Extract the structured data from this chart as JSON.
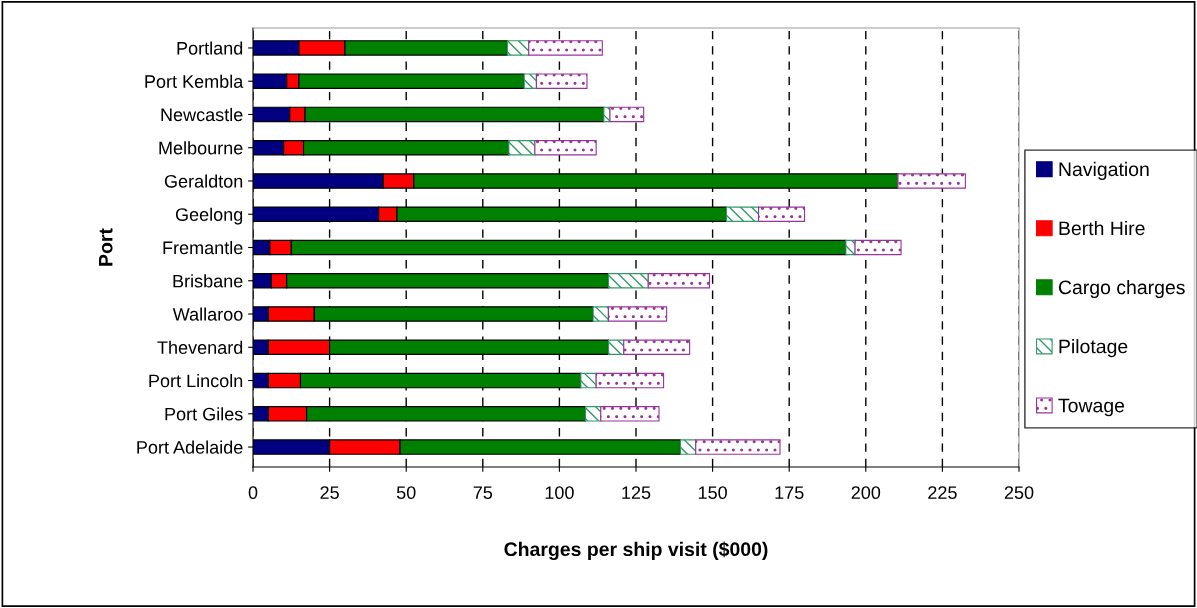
{
  "chart_data": {
    "type": "bar",
    "orientation": "horizontal",
    "stacked": true,
    "xlabel": "Charges per ship visit ($000)",
    "ylabel": "Port",
    "categories": [
      "Portland",
      "Port Kembla",
      "Newcastle",
      "Melbourne",
      "Geraldton",
      "Geelong",
      "Fremantle",
      "Brisbane",
      "Wallaroo",
      "Thevenard",
      "Port Lincoln",
      "Port Giles",
      "Port Adelaide"
    ],
    "series": [
      {
        "name": "Navigation",
        "color": "#000080",
        "values": [
          15,
          11,
          12,
          10,
          42.5,
          41,
          5.5,
          6,
          5,
          5,
          5,
          5,
          25
        ]
      },
      {
        "name": "Berth Hire",
        "color": "#ff0000",
        "values": [
          15,
          4,
          5,
          6.5,
          10,
          6,
          7,
          5,
          15,
          20,
          10.5,
          12.5,
          23
        ]
      },
      {
        "name": "Cargo charges",
        "color": "#008000",
        "values": [
          53,
          73.5,
          97.5,
          67,
          158,
          107.5,
          181,
          105,
          91,
          91,
          91.5,
          91,
          91.5
        ]
      },
      {
        "name": "Pilotage",
        "color": "#339966",
        "values": [
          7,
          4,
          2,
          8.5,
          0,
          10.5,
          3,
          13,
          5,
          5,
          5,
          5,
          5
        ]
      },
      {
        "name": "Towage",
        "color": "#993399",
        "values": [
          24,
          16.5,
          11,
          20,
          22,
          15,
          15,
          20,
          19,
          21.5,
          22,
          19,
          27.5
        ]
      }
    ],
    "xlim": [
      0,
      250
    ],
    "xticks": [
      0,
      25,
      50,
      75,
      100,
      125,
      150,
      175,
      200,
      225,
      250
    ],
    "grid": "x",
    "legend": "right"
  }
}
